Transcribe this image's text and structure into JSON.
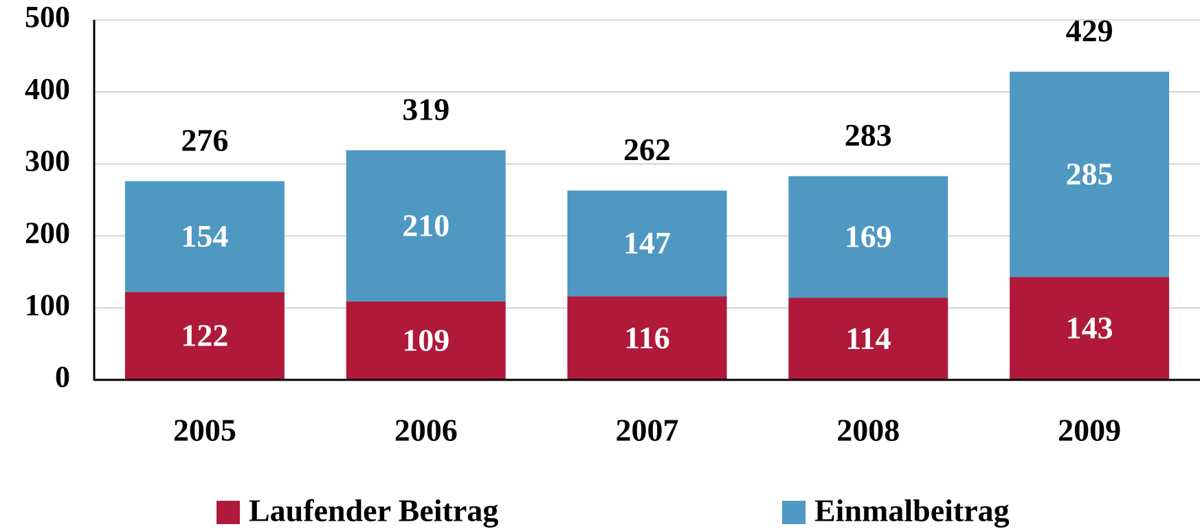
{
  "chart_data": {
    "type": "stacked_bar",
    "categories": [
      "2005",
      "2006",
      "2007",
      "2008",
      "2009"
    ],
    "series": [
      {
        "name": "Laufender Beitrag",
        "color": "#b0193a",
        "values": [
          122,
          109,
          116,
          114,
          143
        ]
      },
      {
        "name": "Einmalbeitrag",
        "color": "#4f98c2",
        "values": [
          154,
          210,
          147,
          169,
          285
        ]
      }
    ],
    "totals": [
      276,
      319,
      262,
      283,
      429
    ],
    "ylim": [
      0,
      500
    ],
    "yticks": [
      0,
      100,
      200,
      300,
      400,
      500
    ],
    "grid": true,
    "legend": "bottom"
  }
}
